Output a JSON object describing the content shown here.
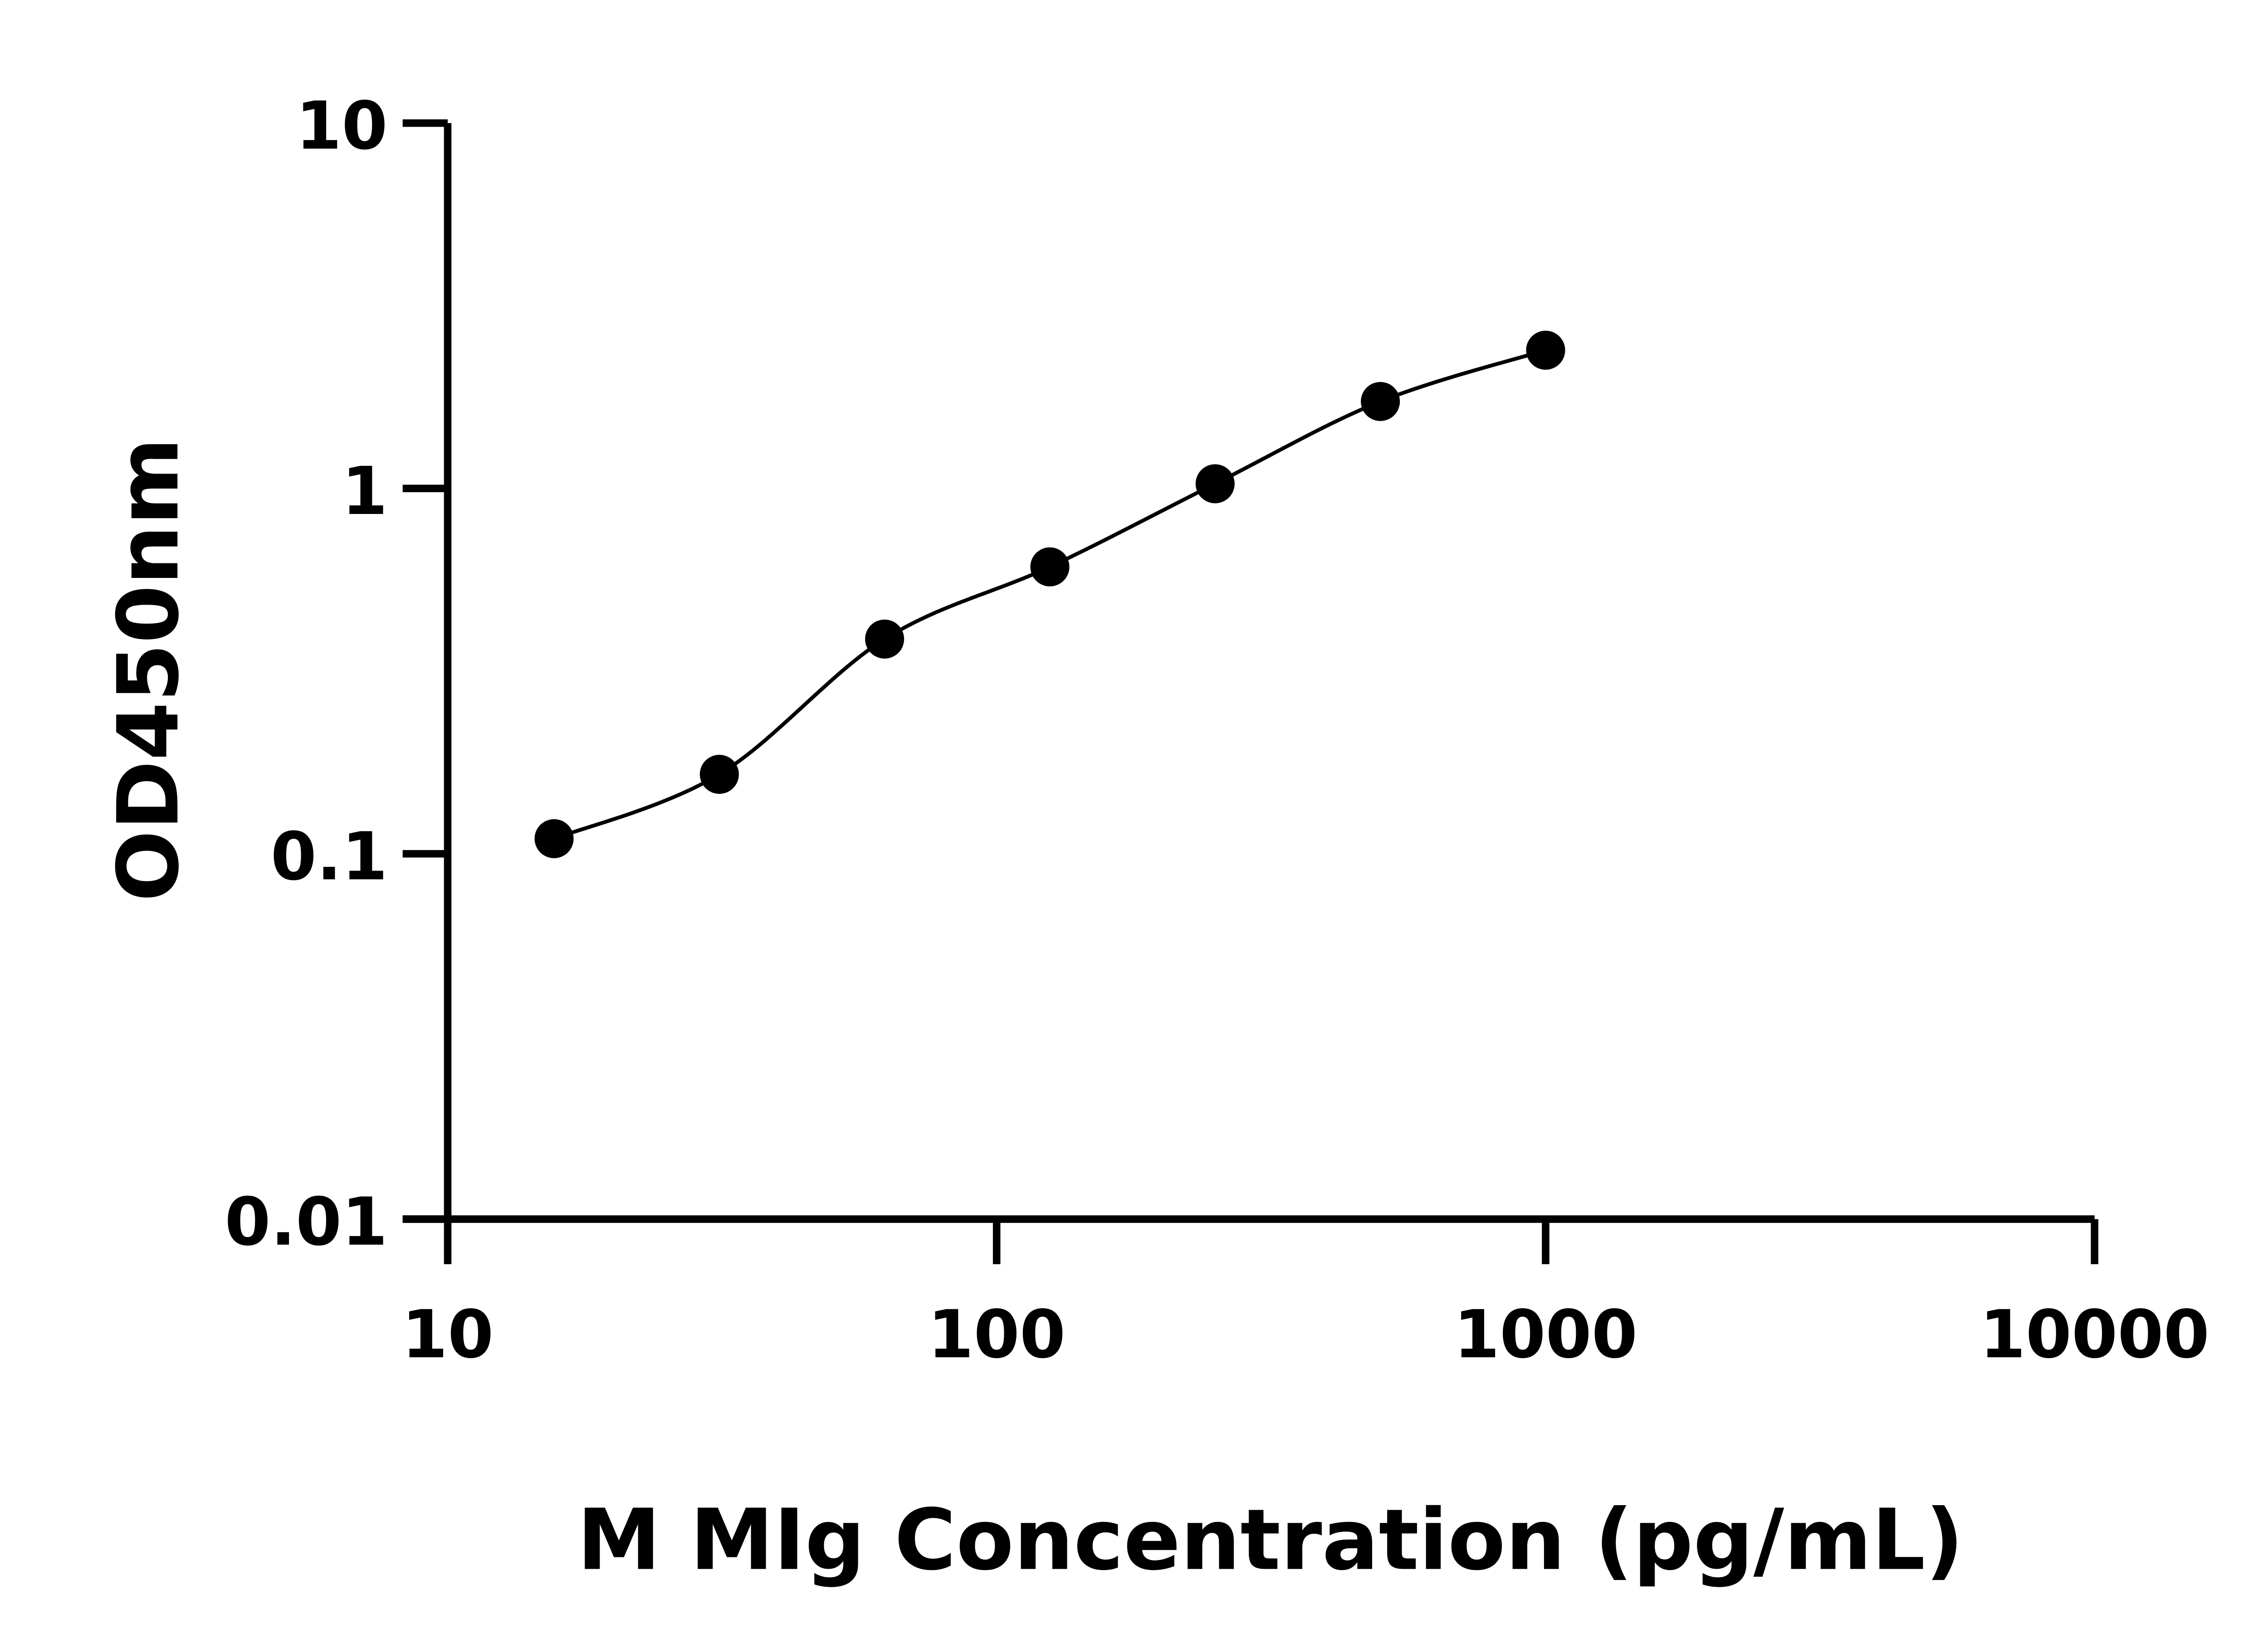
{
  "chart_data": {
    "type": "scatter",
    "title": "",
    "xlabel": "M MIg Concentration (pg/mL)",
    "ylabel": "OD450nm",
    "x_scale": "log",
    "y_scale": "log",
    "xlim": [
      10,
      10000
    ],
    "ylim": [
      0.01,
      10
    ],
    "x_ticks": [
      "10",
      "100",
      "1000",
      "10000"
    ],
    "y_ticks": [
      "0.01",
      "0.1",
      "1",
      "10"
    ],
    "grid": false,
    "fit_curve": true,
    "marker_color": "#000000",
    "x": [
      15.625,
      31.25,
      62.5,
      125,
      250,
      500,
      1000
    ],
    "y": [
      0.11,
      0.165,
      0.387,
      0.61,
      1.03,
      1.73,
      2.39
    ]
  }
}
